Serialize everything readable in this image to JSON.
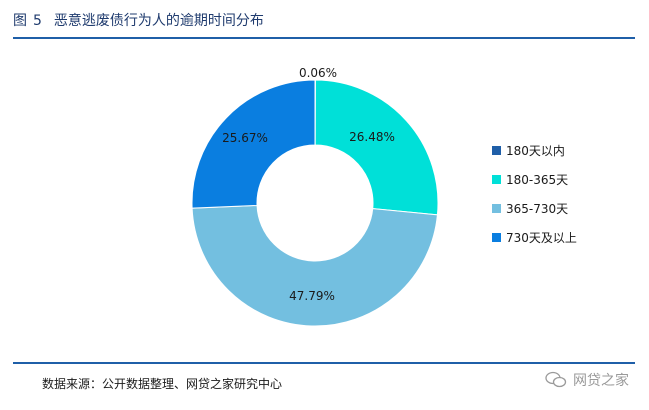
{
  "figure": {
    "label": "图",
    "number": "5",
    "title": "恶意逃废债行为人的逾期时间分布"
  },
  "source_text": "数据来源：公开数据整理、网贷之家研究中心",
  "watermark_text": "网贷之家",
  "chart_data": {
    "type": "pie",
    "donut": true,
    "title": "",
    "categories": [
      "180天以内",
      "180-365天",
      "365-730天",
      "730天及以上"
    ],
    "values": [
      0.06,
      26.48,
      47.79,
      25.67
    ],
    "labels": [
      "0.06%",
      "26.48%",
      "47.79%",
      "25.67%"
    ],
    "colors": [
      "#1f5fa8",
      "#00e0d8",
      "#73bfe0",
      "#0a7ee0"
    ],
    "legend_position": "right"
  }
}
